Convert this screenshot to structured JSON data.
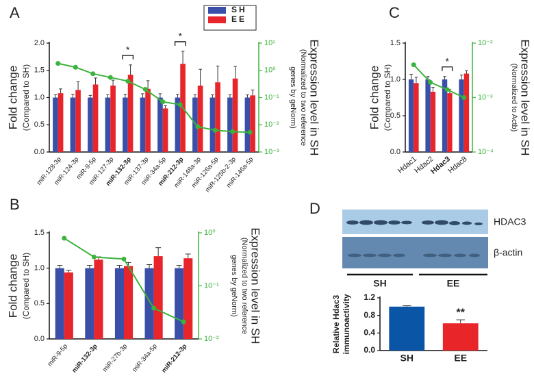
{
  "chart_data": [
    {
      "type": "bar",
      "panel": "A",
      "categories": [
        "miR-128-3p",
        "miR-124-3p",
        "miR-9-5p",
        "miR-127-3p",
        "miR-132-3p",
        "miR-137-3p",
        "miR-34a-5p",
        "miR-212-3p",
        "miR-148a-3p",
        "miR-126a-5p",
        "miR-125b-2-3p",
        "miR-146a-5p"
      ],
      "bold_categories": [
        4,
        7
      ],
      "series": [
        {
          "name": "SH",
          "color": "#3a4fa8",
          "values": [
            1,
            1,
            1,
            1,
            1,
            1,
            1,
            1,
            1,
            1,
            1,
            1
          ],
          "errors": [
            0.05,
            0.06,
            0.04,
            0.05,
            0.06,
            0.07,
            0.07,
            0.06,
            0.05,
            0.05,
            0.05,
            0.05
          ]
        },
        {
          "name": "EE",
          "color": "#e8252b",
          "values": [
            1.08,
            1.14,
            1.24,
            1.22,
            1.42,
            1.16,
            0.8,
            1.62,
            1.22,
            1.28,
            1.35,
            1.04
          ],
          "errors": [
            0.08,
            0.15,
            0.12,
            0.1,
            0.18,
            0.15,
            0.05,
            0.23,
            0.3,
            0.3,
            0.22,
            0.1
          ]
        },
        {
          "color": "#3cb33c",
          "axis": "y2",
          "values": [
            1.8,
            1.3,
            0.75,
            0.55,
            0.4,
            0.2,
            0.07,
            0.055,
            0.0085,
            0.0063,
            0.0056,
            0.0053
          ]
        }
      ],
      "ylabel": [
        "Fold change",
        "(Compared to SH)"
      ],
      "y2label": [
        "Expression level in SH",
        "(Normalized to two reference",
        "genes by geNorm)"
      ],
      "ylim": [
        0,
        2
      ],
      "yticks": [
        {
          "value": 0,
          "label": "0.0"
        },
        {
          "value": 0.5,
          "label": "0.5"
        },
        {
          "value": 1,
          "label": "1.0"
        },
        {
          "value": 1.5,
          "label": "1.5"
        },
        {
          "value": 2,
          "label": "2.0"
        }
      ],
      "y2lim": [
        0.001,
        10
      ],
      "y2log": true,
      "y2ticks": [
        {
          "value": 10,
          "label": "10¹"
        },
        {
          "value": 1,
          "label": "10⁰"
        },
        {
          "value": 0.1,
          "label": "10⁻¹"
        },
        {
          "value": 0.01,
          "label": "10⁻²"
        },
        {
          "value": 0.001,
          "label": "10⁻³"
        }
      ],
      "annotations": [
        {
          "category": 4,
          "text": "*"
        },
        {
          "category": 7,
          "text": "*"
        }
      ],
      "annotation_bracket": true,
      "legend": true
    },
    {
      "type": "bar",
      "panel": "B",
      "categories": [
        "miR-9-5p",
        "miR-132-3p",
        "miR-27b-3p",
        "miR-34a-5p",
        "miR-212-3p"
      ],
      "bold_categories": [
        1,
        4
      ],
      "series": [
        {
          "color": "#3a4fa8",
          "values": [
            1,
            1,
            1,
            1,
            1
          ],
          "errors": [
            0.04,
            0.04,
            0.04,
            0.05,
            0.04
          ]
        },
        {
          "color": "#e8252b",
          "values": [
            0.94,
            1.12,
            1.03,
            1.17,
            1.14
          ],
          "errors": [
            0.03,
            0.04,
            0.05,
            0.12,
            0.06
          ]
        },
        {
          "color": "#3cb33c",
          "axis": "y2",
          "values": [
            0.79,
            0.35,
            0.32,
            0.038,
            0.021
          ]
        }
      ],
      "ylabel": [
        "Fold change",
        "(Compared to SH)"
      ],
      "y2label": [
        "Expression level in SH",
        "(Normalized to two reference",
        "genes by geNorm)"
      ],
      "ylim": [
        0,
        1.5
      ],
      "yticks": [
        {
          "value": 0,
          "label": "0.0"
        },
        {
          "value": 0.5,
          "label": "0.5"
        },
        {
          "value": 1,
          "label": "1.0"
        },
        {
          "value": 1.5,
          "label": "1.5"
        }
      ],
      "y2lim": [
        0.01,
        1
      ],
      "y2log": true,
      "y2ticks": [
        {
          "value": 1,
          "label": "10⁰"
        },
        {
          "value": 0.1,
          "label": "10⁻¹"
        },
        {
          "value": 0.01,
          "label": "10⁻²"
        }
      ]
    },
    {
      "type": "bar",
      "panel": "C",
      "categories": [
        "Hdac1",
        "Hdac2",
        "Hdac3",
        "Hdac8"
      ],
      "bold_categories": [
        2
      ],
      "series": [
        {
          "color": "#3a4fa8",
          "values": [
            1,
            1,
            1,
            1
          ],
          "errors": [
            0.07,
            0.04,
            0.04,
            0.06
          ]
        },
        {
          "color": "#e8252b",
          "values": [
            0.95,
            0.83,
            0.81,
            1.08
          ],
          "errors": [
            0.08,
            0.06,
            0.05,
            0.04
          ]
        },
        {
          "color": "#3cb33c",
          "axis": "y2",
          "values": [
            0.004,
            0.0019,
            0.0014,
            0.001
          ]
        }
      ],
      "ylabel": [
        "Fold change",
        "(Compared to SH)"
      ],
      "y2label": [
        "Expression level in SH",
        "(Normalized to Actb)"
      ],
      "ylim": [
        0,
        1.5
      ],
      "yticks": [
        {
          "value": 0,
          "label": "0.0"
        },
        {
          "value": 0.5,
          "label": "0.5"
        },
        {
          "value": 1,
          "label": "1.0"
        },
        {
          "value": 1.5,
          "label": "1.5"
        }
      ],
      "y2lim": [
        0.0001,
        0.01
      ],
      "y2log": true,
      "y2ticks": [
        {
          "value": 0.01,
          "label": "10⁻²"
        },
        {
          "value": 0.001,
          "label": "10⁻³"
        },
        {
          "value": 0.0001,
          "label": "10⁻⁴"
        }
      ],
      "annotations": [
        {
          "category": 2,
          "text": "*"
        }
      ],
      "annotation_bracket": true
    },
    {
      "type": "bar",
      "panel": "D",
      "categories": [
        "SH",
        "EE"
      ],
      "bold_categories": [
        0,
        1
      ],
      "values": [
        1.0,
        0.62
      ],
      "errors": [
        0.02,
        0.08
      ],
      "colors": [
        "#0b55a6",
        "#e8262a"
      ],
      "ylabel": [
        "Relative Hdac3",
        "immunoactivity"
      ],
      "ylim": [
        0,
        1.2
      ],
      "yticks": [
        {
          "value": 0,
          "label": "0.0"
        },
        {
          "value": 0.4,
          "label": "0.4"
        },
        {
          "value": 0.8,
          "label": "0.8"
        },
        {
          "value": 1.2,
          "label": "1.2"
        }
      ],
      "annotations": [
        {
          "category": 1,
          "text": "**"
        }
      ],
      "annotation_bracket": false
    }
  ],
  "blot": {
    "bands": [
      "HDAC3",
      "β-actin"
    ],
    "groups": [
      "SH",
      "EE"
    ]
  }
}
